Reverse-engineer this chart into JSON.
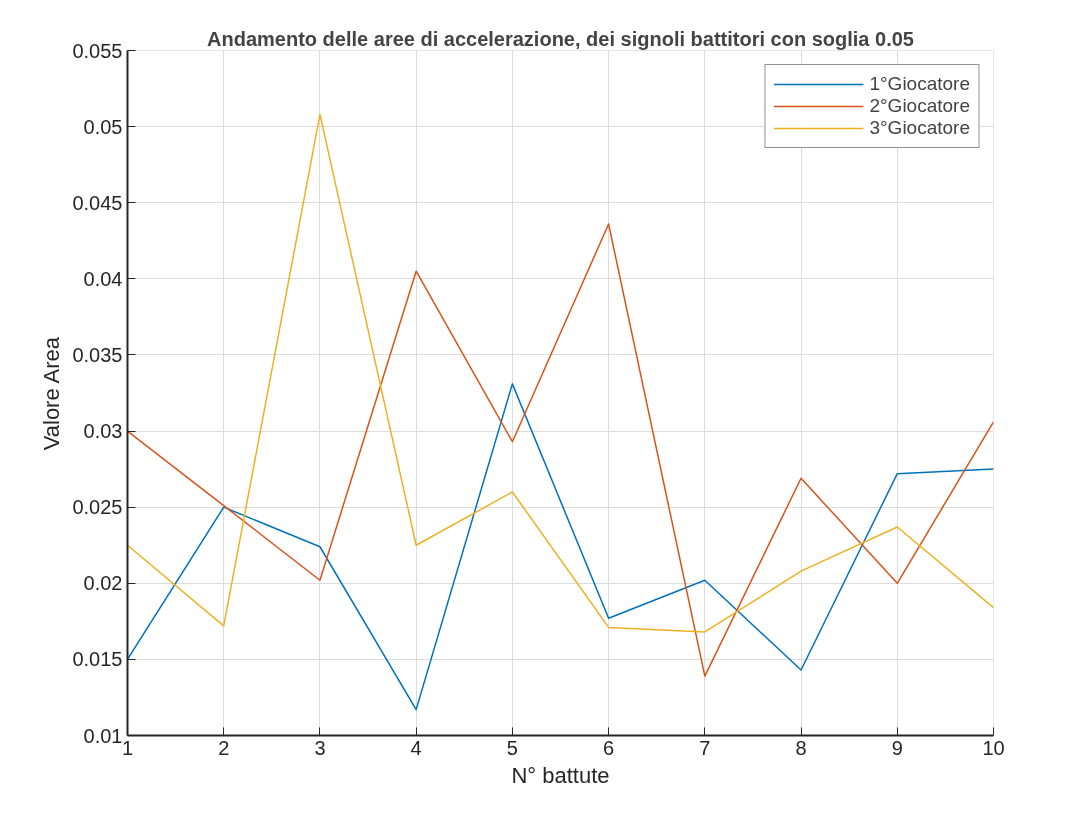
{
  "chart_data": {
    "type": "line",
    "title": "Andamento delle aree di accelerazione, dei signoli battitori con soglia 0.05",
    "xlabel": "N° battute",
    "ylabel": "Valore Area",
    "x": [
      1,
      2,
      3,
      4,
      5,
      6,
      7,
      8,
      9,
      10
    ],
    "series": [
      {
        "name": "1°Giocatore",
        "color": "#0072bd",
        "values": [
          0.015,
          0.025,
          0.0224,
          0.0117,
          0.0331,
          0.0177,
          0.0202,
          0.0143,
          0.0272,
          0.0275
        ]
      },
      {
        "name": "2°Giocatore",
        "color": "#d95319",
        "values": [
          0.03,
          0.0251,
          0.0202,
          0.0405,
          0.0293,
          0.0436,
          0.0139,
          0.0269,
          0.02,
          0.0306
        ]
      },
      {
        "name": "3°Giocatore",
        "color": "#edb120",
        "values": [
          0.0225,
          0.0172,
          0.0508,
          0.0225,
          0.026,
          0.0171,
          0.0168,
          0.0208,
          0.0237,
          0.0184
        ]
      }
    ],
    "xlim": [
      1,
      10
    ],
    "xticks": [
      1,
      2,
      3,
      4,
      5,
      6,
      7,
      8,
      9,
      10
    ],
    "ylim": [
      0.01,
      0.055
    ],
    "yticks": [
      0.01,
      0.015,
      0.02,
      0.025,
      0.03,
      0.035,
      0.04,
      0.045,
      0.05,
      0.055
    ],
    "grid": true,
    "legend": "top right",
    "marker": "none",
    "line_style": "solid"
  }
}
